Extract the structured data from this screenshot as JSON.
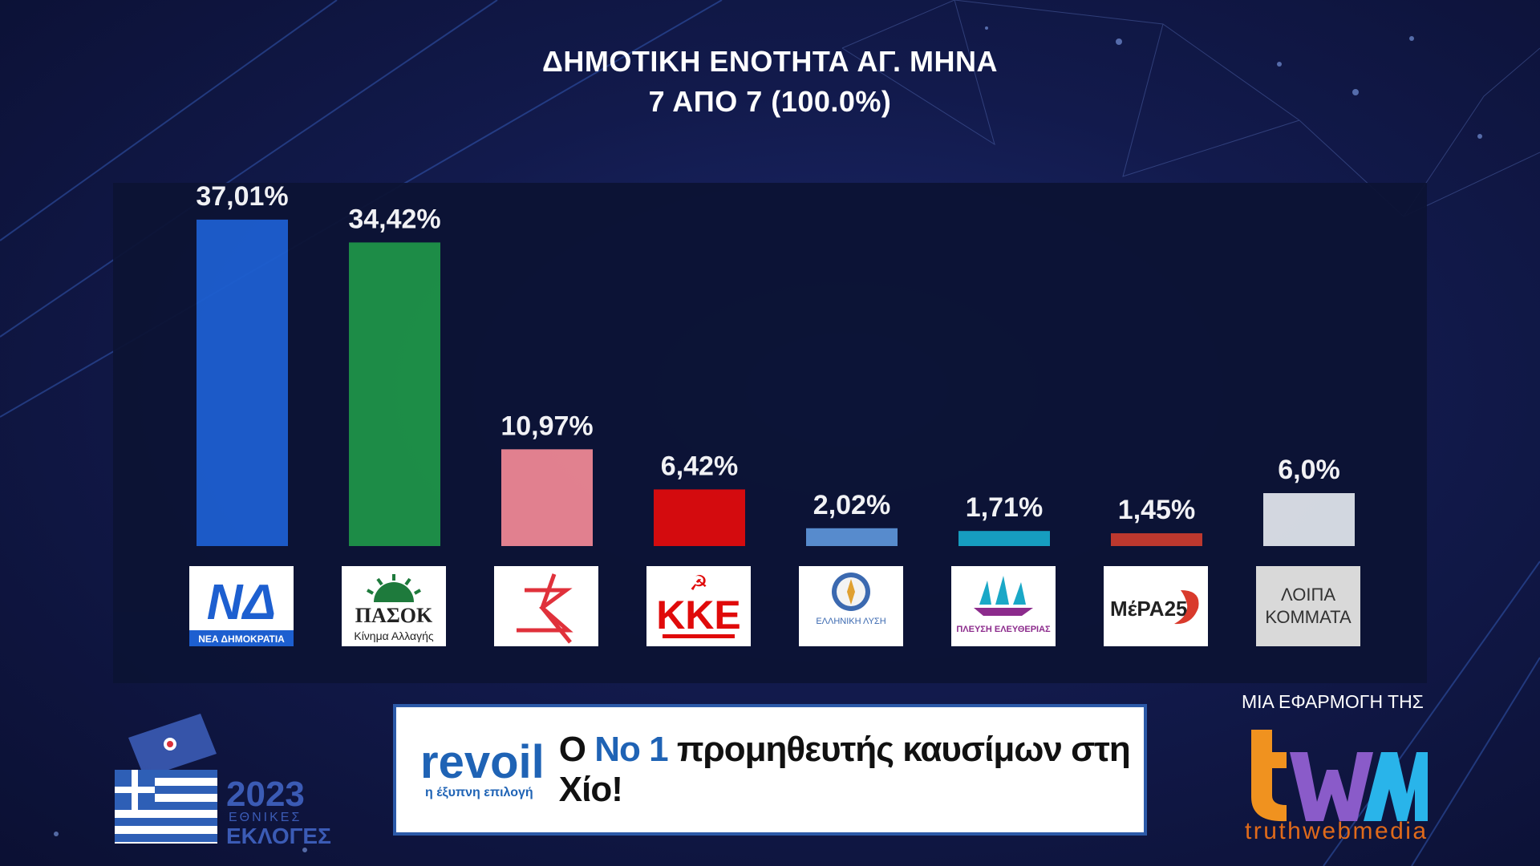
{
  "header": {
    "title_line1": "ΔΗΜΟΤΙΚΗ ΕΝΟΤΗΤΑ ΑΓ. ΜΗΝΑ",
    "title_line2": "7 ΑΠΟ 7 (100.0%)"
  },
  "chart_data": {
    "type": "bar",
    "categories": [
      "ΝΕΑ ΔΗΜΟΚΡΑΤΙΑ",
      "ΠΑΣΟΚ Κίνημα Αλλαγής",
      "ΣΥΡΙΖΑ",
      "ΚΚΕ",
      "ΕΛΛΗΝΙΚΗ ΛΥΣΗ",
      "ΠΛΕΥΣΗ ΕΛΕΥΘΕΡΙΑΣ",
      "ΜέΡΑ25",
      "ΛΟΙΠΑ ΚΟΜΜΑΤΑ"
    ],
    "values": [
      37.01,
      34.42,
      10.97,
      6.42,
      2.02,
      1.71,
      1.45,
      6.0
    ],
    "labels": [
      "37,01%",
      "34,42%",
      "10,97%",
      "6,42%",
      "2,02%",
      "1,71%",
      "1,45%",
      "6,0%"
    ],
    "colors": [
      "#1d5fd0",
      "#1e9447",
      "#ee8793",
      "#e00a0a",
      "#5b92d4",
      "#16a5c6",
      "#c83a2c",
      "#dfe3ea"
    ],
    "ylim": [
      0,
      40
    ],
    "grid": false,
    "legend": "none"
  },
  "logos": {
    "nd_text": "ΝΕΑ ΔΗΜΟΚΡΑΤΙΑ",
    "pasok_name": "ΠΑΣΟΚ",
    "pasok_sub": "Κίνημα Αλλαγής",
    "kke": "ΚΚΕ",
    "elliniki_lysi": "ΕΛΛΗΝΙΚΗ ΛΥΣΗ",
    "plefsi": "ΠΛΕΥΣΗ ΕΛΕΥΘΕΡΙΑΣ",
    "mera25": "ΜέΡΑ25",
    "loipa": "ΛΟΙΠΑ ΚΟΜΜΑΤΑ"
  },
  "ad": {
    "brand": "revoil",
    "slogan": "η έξυπνη επιλογή",
    "prefix": "Ο",
    "highlight": "Νο 1",
    "text": "προμηθευτής καυσίμων στη Χίο!"
  },
  "elections_badge": {
    "year": "2023",
    "line1": "ΕΘΝΙΚΕΣ",
    "line2": "ΕΚΛΟΓΕΣ"
  },
  "branding": {
    "tag": "ΜΙΑ ΕΦΑΡΜΟΓΗ ΤΗΣ",
    "logo": "truthwebmedia"
  }
}
